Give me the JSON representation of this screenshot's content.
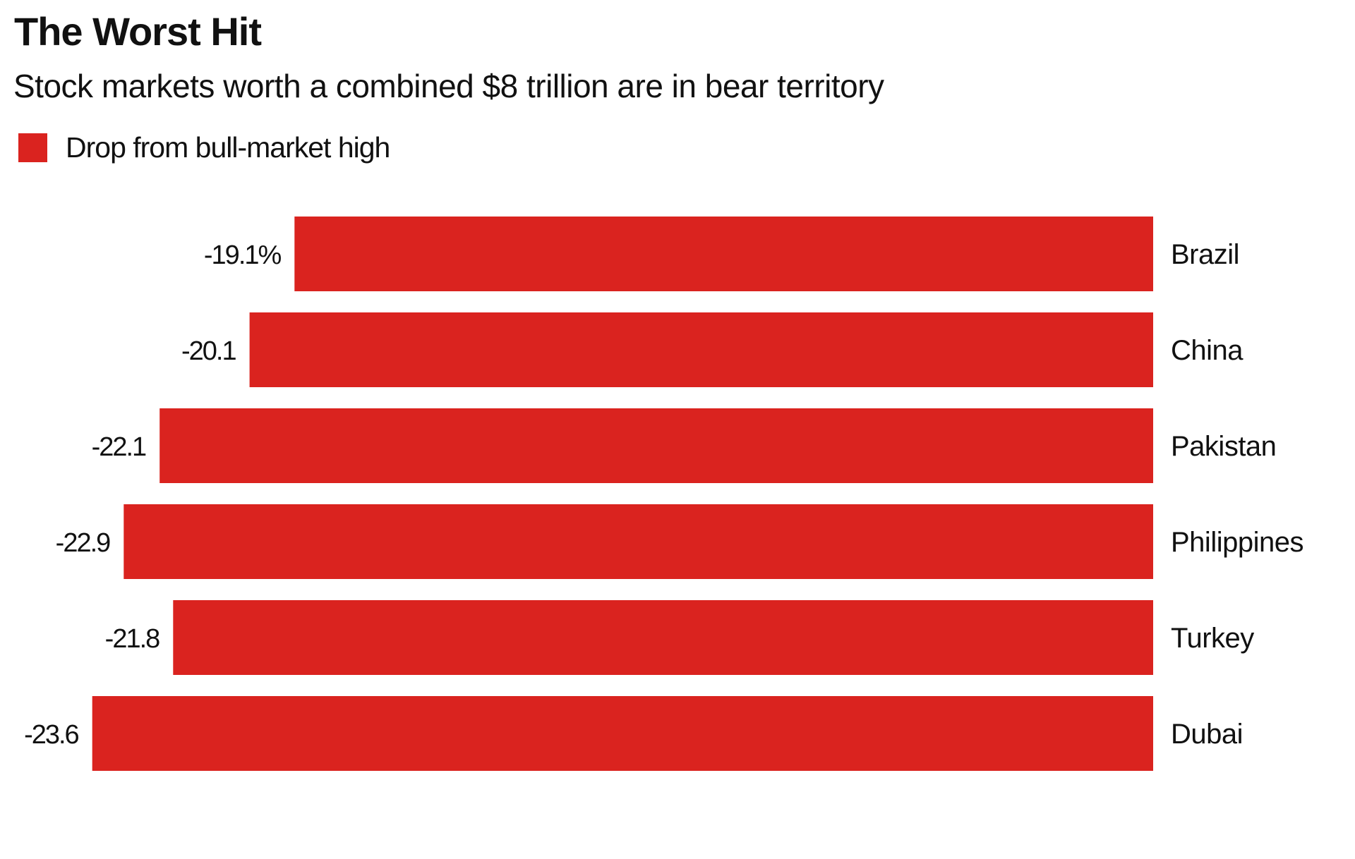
{
  "header": {
    "title": "The Worst Hit",
    "subtitle": "Stock markets worth a combined $8 trillion are in bear territory"
  },
  "colors": {
    "bar": "#DA231F"
  },
  "chart_data": {
    "type": "bar",
    "orientation": "horizontal",
    "title": "The Worst Hit",
    "subtitle": "Stock markets worth a combined $8 trillion are in bear territory",
    "legend": [
      {
        "label": "Drop from bull-market high",
        "color": "#DA231F"
      }
    ],
    "legend_position": "top-left",
    "categories": [
      "Brazil",
      "China",
      "Pakistan",
      "Philippines",
      "Turkey",
      "Dubai"
    ],
    "series": [
      {
        "name": "Drop from bull-market high",
        "values": [
          -19.1,
          -20.1,
          -22.1,
          -22.9,
          -21.8,
          -23.6
        ]
      }
    ],
    "data_labels": [
      "-19.1%",
      "-20.1",
      "-22.1",
      "-22.9",
      "-21.8",
      "-23.6"
    ],
    "xlabel": "",
    "ylabel": "",
    "xlim": [
      -23.6,
      0
    ],
    "grid": false
  }
}
